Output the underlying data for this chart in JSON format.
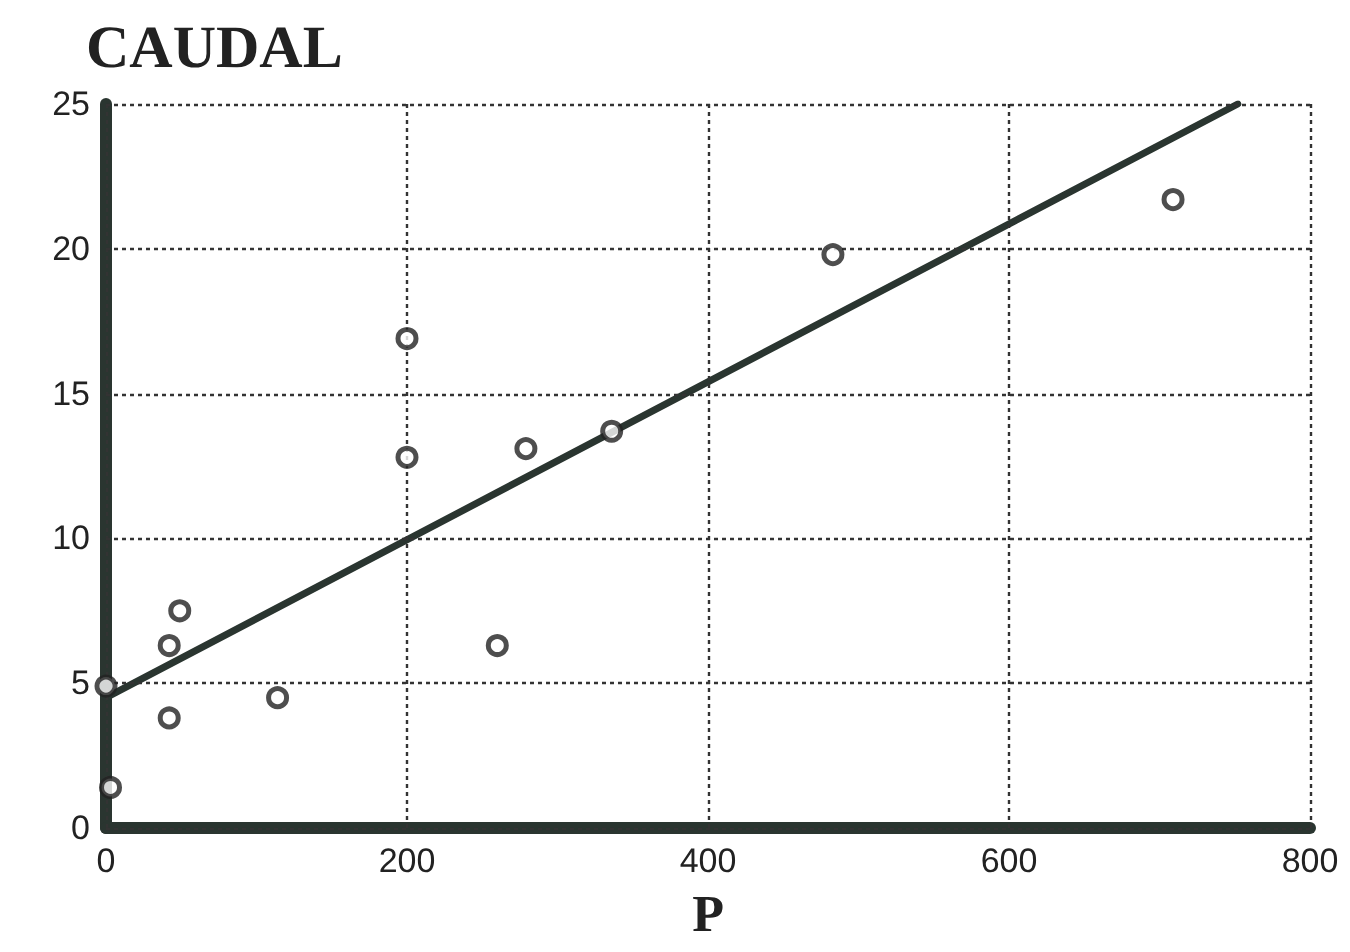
{
  "chart_data": {
    "type": "scatter",
    "title": "CAUDAL",
    "xlabel": "P",
    "xlim": [
      0,
      800
    ],
    "xticks": [
      0,
      200,
      400,
      600,
      800
    ],
    "ylim": [
      0,
      25
    ],
    "yticks": [
      0,
      5,
      10,
      15,
      20,
      25
    ],
    "grid": true,
    "marker": "circle",
    "series": [
      {
        "color": "#222222",
        "x": [
          0,
          3,
          42,
          42,
          49,
          114,
          200,
          200,
          260,
          279,
          336,
          483,
          709
        ],
        "values": [
          4.9,
          1.4,
          6.3,
          3.8,
          7.5,
          4.5,
          16.9,
          12.8,
          6.3,
          13.1,
          13.7,
          19.8,
          21.7
        ]
      },
      {
        "type": "line",
        "color": "#2a3530",
        "marker": "none",
        "line_style": "solid",
        "x": [
          0,
          752
        ],
        "values": [
          4.5,
          25
        ]
      }
    ]
  }
}
